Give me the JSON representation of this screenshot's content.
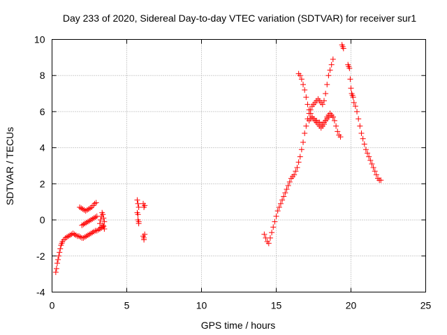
{
  "chart_data": {
    "type": "scatter",
    "title": "Day 233 of 2020, Sidereal Day-to-day VTEC variation (SDTVAR) for receiver sur1",
    "xlabel": "GPS time / hours",
    "ylabel": "SDTVAR / TECUs",
    "xlim": [
      0,
      25
    ],
    "ylim": [
      -4,
      10
    ],
    "xticks": [
      "0",
      "5",
      "10",
      "15",
      "20",
      "25"
    ],
    "yticks": [
      "-4",
      "-2",
      "0",
      "2",
      "4",
      "6",
      "8",
      "10"
    ],
    "grid": true,
    "marker": "plus",
    "color": "#ff0000",
    "series": [
      {
        "name": "SDTVAR",
        "x": [
          0.25,
          0.3,
          0.35,
          0.4,
          0.45,
          0.5,
          0.55,
          0.6,
          0.65,
          0.7,
          0.8,
          0.9,
          1.0,
          1.1,
          1.2,
          1.3,
          1.4,
          1.5,
          1.6,
          1.7,
          1.8,
          1.9,
          2.0,
          2.1,
          2.2,
          2.3,
          2.4,
          2.5,
          2.6,
          2.7,
          2.8,
          2.9,
          3.0,
          3.1,
          3.2,
          3.3,
          3.4,
          3.45,
          1.85,
          1.95,
          2.05,
          2.15,
          2.25,
          2.35,
          2.45,
          2.55,
          2.65,
          2.75,
          2.85,
          2.95,
          2.0,
          2.1,
          2.2,
          2.3,
          2.4,
          2.5,
          2.6,
          2.7,
          2.8,
          2.9,
          3.0,
          3.2,
          3.25,
          3.3,
          3.35,
          3.4,
          3.45,
          3.5,
          3.3,
          3.4,
          3.5,
          5.7,
          5.75,
          5.8,
          5.7,
          5.75,
          5.8,
          5.75,
          5.8,
          6.1,
          6.15,
          6.2,
          6.1,
          6.15,
          6.2,
          6.15,
          14.2,
          14.3,
          14.4,
          14.5,
          14.6,
          14.7,
          14.8,
          14.9,
          15.0,
          15.1,
          15.2,
          15.3,
          15.4,
          15.5,
          15.6,
          15.7,
          15.8,
          15.9,
          16.0,
          16.1,
          16.2,
          16.3,
          16.4,
          16.5,
          16.6,
          16.7,
          16.8,
          16.9,
          17.0,
          17.1,
          17.2,
          17.3,
          17.4,
          17.5,
          17.6,
          17.7,
          17.8,
          17.9,
          18.0,
          18.1,
          18.2,
          18.3,
          18.4,
          18.5,
          18.6,
          18.7,
          18.8,
          16.5,
          16.6,
          16.7,
          16.8,
          16.9,
          17.0,
          17.1,
          17.2,
          17.3,
          17.4,
          17.5,
          17.6,
          17.7,
          17.8,
          17.9,
          18.0,
          18.1,
          18.2,
          18.3,
          18.4,
          18.5,
          18.6,
          18.7,
          18.8,
          18.9,
          19.0,
          19.1,
          19.2,
          19.3,
          17.2,
          17.3,
          17.4,
          17.5,
          17.6,
          17.7,
          17.8,
          17.9,
          18.0,
          18.1,
          18.2,
          18.3,
          18.4,
          18.5,
          18.6,
          18.7,
          18.8,
          19.4,
          19.45,
          19.5,
          19.8,
          19.85,
          19.9,
          19.95,
          20.0,
          20.05,
          20.1,
          20.15,
          20.2,
          20.3,
          20.4,
          20.5,
          20.6,
          20.7,
          20.8,
          20.9,
          21.0,
          21.1,
          21.2,
          21.3,
          21.4,
          21.5,
          21.6,
          21.7,
          21.8,
          21.9,
          22.0
        ],
        "y": [
          -2.9,
          -2.7,
          -2.4,
          -2.2,
          -2.0,
          -1.8,
          -1.6,
          -1.4,
          -1.3,
          -1.2,
          -1.1,
          -1.0,
          -0.95,
          -0.9,
          -0.85,
          -0.8,
          -0.75,
          -0.8,
          -0.85,
          -0.9,
          -0.9,
          -0.95,
          -1.0,
          -1.0,
          -0.95,
          -0.9,
          -0.85,
          -0.8,
          -0.75,
          -0.7,
          -0.65,
          -0.6,
          -0.6,
          -0.55,
          -0.5,
          -0.45,
          -0.4,
          -0.35,
          0.7,
          0.65,
          0.6,
          0.55,
          0.5,
          0.55,
          0.6,
          0.65,
          0.7,
          0.8,
          0.9,
          0.95,
          -0.3,
          -0.25,
          -0.2,
          -0.15,
          -0.1,
          -0.05,
          0.0,
          0.05,
          0.1,
          0.15,
          0.2,
          -0.2,
          0.0,
          0.2,
          0.4,
          0.3,
          0.1,
          -0.1,
          -0.4,
          -0.3,
          -0.5,
          1.1,
          0.9,
          0.7,
          0.4,
          0.0,
          -0.1,
          0.3,
          -0.2,
          0.9,
          0.7,
          0.8,
          -0.9,
          -1.0,
          -0.8,
          -1.1,
          -0.8,
          -1.0,
          -1.2,
          -1.3,
          -1.0,
          -0.7,
          -0.4,
          -0.1,
          0.2,
          0.5,
          0.7,
          0.9,
          1.1,
          1.3,
          1.5,
          1.7,
          1.9,
          2.1,
          2.3,
          2.4,
          2.5,
          2.7,
          2.9,
          3.2,
          3.5,
          3.9,
          4.3,
          4.8,
          5.2,
          5.6,
          5.9,
          6.1,
          6.3,
          6.4,
          6.5,
          6.6,
          6.7,
          6.6,
          6.5,
          6.4,
          6.6,
          7.0,
          7.5,
          8.0,
          8.3,
          8.6,
          8.9,
          8.1,
          8.0,
          7.8,
          7.5,
          7.2,
          6.8,
          6.4,
          6.1,
          5.9,
          5.7,
          5.6,
          5.5,
          5.5,
          5.4,
          5.4,
          5.3,
          5.3,
          5.4,
          5.5,
          5.6,
          5.7,
          5.8,
          5.8,
          5.7,
          5.5,
          5.2,
          4.9,
          4.7,
          4.6,
          5.5,
          5.6,
          5.7,
          5.6,
          5.5,
          5.4,
          5.3,
          5.2,
          5.1,
          5.2,
          5.3,
          5.5,
          5.7,
          5.8,
          5.9,
          5.8,
          5.7,
          9.7,
          9.6,
          9.5,
          8.6,
          8.5,
          8.4,
          7.8,
          7.3,
          7.0,
          6.9,
          6.8,
          6.5,
          6.3,
          6.0,
          5.6,
          5.2,
          4.8,
          4.5,
          4.2,
          3.9,
          3.7,
          3.5,
          3.3,
          3.1,
          2.9,
          2.7,
          2.5,
          2.3,
          2.2,
          2.2
        ]
      }
    ]
  }
}
